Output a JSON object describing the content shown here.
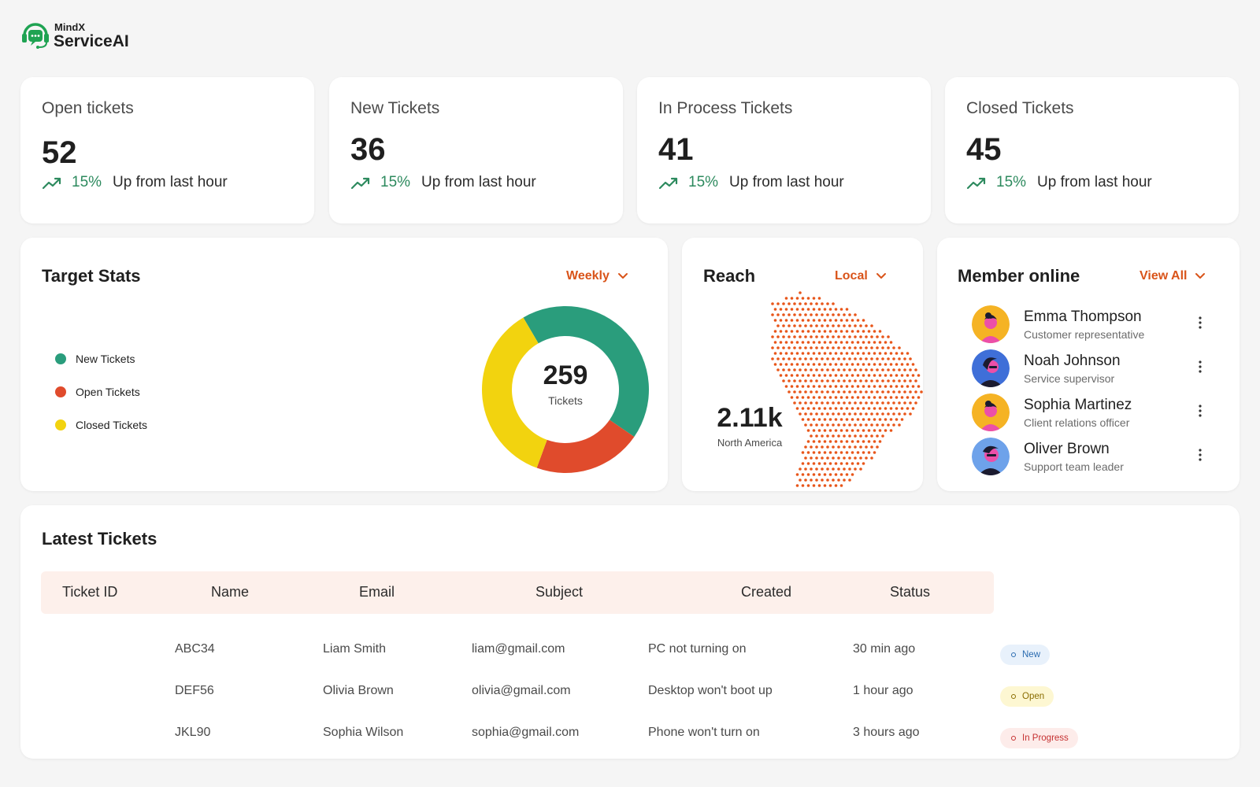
{
  "brand": {
    "line1": "MindX",
    "line2": "ServiceAI"
  },
  "stats": [
    {
      "title": "Open tickets",
      "value": "52",
      "pct": "15%",
      "text": "Up from last hour"
    },
    {
      "title": "New Tickets",
      "value": "36",
      "pct": "15%",
      "text": "Up from last hour"
    },
    {
      "title": "In Process Tickets",
      "value": "41",
      "pct": "15%",
      "text": "Up from last hour"
    },
    {
      "title": "Closed Tickets",
      "value": "45",
      "pct": "15%",
      "text": "Up from last hour"
    }
  ],
  "target": {
    "title": "Target Stats",
    "period": "Weekly",
    "legend": [
      {
        "label": "New Tickets",
        "color": "#2a9d7c"
      },
      {
        "label": "Open Tickets",
        "color": "#e04b2c"
      },
      {
        "label": "Closed Tickets",
        "color": "#f2d30f"
      }
    ],
    "total": "259",
    "total_label": "Tickets"
  },
  "chart_data": {
    "type": "pie",
    "categories": [
      "New Tickets",
      "Open Tickets",
      "Closed Tickets"
    ],
    "values": [
      43,
      21,
      36
    ],
    "colors": [
      "#2a9d7c",
      "#e04b2c",
      "#f2d30f"
    ],
    "title": "Target Stats"
  },
  "reach": {
    "title": "Reach",
    "scope": "Local",
    "value": "2.11k",
    "region": "North America",
    "dot_color": "#e8561a"
  },
  "members": {
    "title": "Member online",
    "view_all": "View All",
    "items": [
      {
        "name": "Emma Thompson",
        "role": "Customer representative",
        "bg": "#f5b324"
      },
      {
        "name": "Noah Johnson",
        "role": "Service supervisor",
        "bg": "#3f6fd8"
      },
      {
        "name": "Sophia Martinez",
        "role": "Client relations officer",
        "bg": "#f5b324"
      },
      {
        "name": "Oliver Brown",
        "role": "Support team leader",
        "bg": "#6ea2ea"
      }
    ]
  },
  "tickets": {
    "title": "Latest Tickets",
    "columns": [
      "Ticket ID",
      "Name",
      "Email",
      "Subject",
      "Created",
      "Status"
    ],
    "rows": [
      {
        "id": "ABC34",
        "name": "Liam Smith",
        "email": "liam@gmail.com",
        "subject": "PC not turning on",
        "created": "30 min ago",
        "status": "New",
        "status_color": "#2b6cb0",
        "status_bg": "#e8f1fb"
      },
      {
        "id": "DEF56",
        "name": "Olivia Brown",
        "email": "olivia@gmail.com",
        "subject": "Desktop won't boot up",
        "created": "1 hour ago",
        "status": "Open",
        "status_color": "#8a6d00",
        "status_bg": "#fdf7d2"
      },
      {
        "id": "JKL90",
        "name": "Sophia Wilson",
        "email": "sophia@gmail.com",
        "subject": "Phone won't turn on",
        "created": "3 hours ago",
        "status": "In Progress",
        "status_color": "#c53030",
        "status_bg": "#fdecea"
      }
    ]
  }
}
